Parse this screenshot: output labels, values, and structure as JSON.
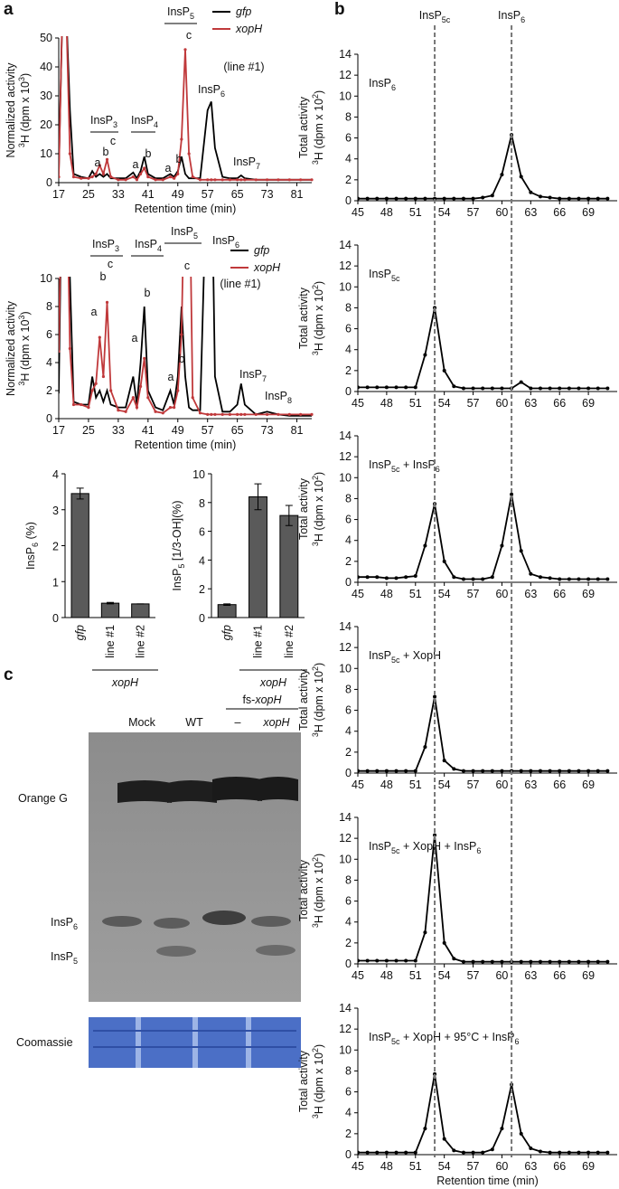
{
  "panel_labels": [
    "a",
    "b",
    "c"
  ],
  "chart_data": [
    {
      "type": "line",
      "xlabel": "Retention time (min)",
      "ylabel_lines": [
        "Normalized activity",
        [
          {
            "sup": "3"
          },
          "H (dpm x 10",
          {
            "sup": "3"
          },
          ")"
        ]
      ],
      "x": [
        17,
        18,
        19,
        20,
        21,
        23,
        25,
        26,
        27,
        28,
        29,
        30,
        31,
        33,
        35,
        37,
        38,
        39,
        40,
        41,
        43,
        45,
        47,
        48,
        49,
        50,
        51,
        52,
        53,
        55,
        57,
        58,
        59,
        61,
        63,
        65,
        66,
        67,
        70,
        73,
        76,
        79,
        82,
        85
      ],
      "xlim": [
        17,
        85
      ],
      "xticks": [
        17,
        25,
        33,
        41,
        49,
        57,
        65,
        73,
        81
      ],
      "ylim": [
        0,
        50
      ],
      "yticks": [
        0,
        10,
        20,
        30,
        40,
        50
      ],
      "series": [
        {
          "name": "gfp",
          "color": "#000000",
          "values": [
            3,
            60,
            60,
            25,
            3,
            2,
            1.5,
            4,
            2,
            3,
            2,
            3,
            1.5,
            1.5,
            1.5,
            3.5,
            1.5,
            4,
            9,
            3,
            1.5,
            1.5,
            3,
            2,
            4,
            9,
            3,
            1.5,
            1.5,
            1.5,
            25,
            28,
            12,
            2,
            1.5,
            1.5,
            2.5,
            1.5,
            1,
            1,
            1,
            1,
            1,
            1
          ]
        },
        {
          "name": "xopH",
          "color": "#c0393b",
          "markers": true,
          "values": [
            2,
            60,
            60,
            10,
            2,
            1.5,
            1.5,
            2,
            3,
            6,
            3,
            8,
            2,
            1,
            1,
            2,
            1,
            3,
            5,
            2,
            1,
            1,
            2,
            1.5,
            3,
            15,
            46,
            10,
            2,
            1,
            1,
            1,
            1,
            1,
            1,
            1,
            1,
            1,
            1,
            1,
            1,
            1,
            1,
            1
          ]
        }
      ],
      "legend_note": "(line #1)",
      "annotations": [
        [
          "InsP",
          {
            "sub": "3"
          }
        ],
        "a",
        "b",
        "c",
        [
          "InsP",
          {
            "sub": "4"
          }
        ],
        "a",
        "b",
        [
          "InsP",
          {
            "sub": "5"
          }
        ],
        "a",
        "b",
        "c",
        [
          "InsP",
          {
            "sub": "6"
          }
        ],
        [
          "InsP",
          {
            "sub": "7"
          }
        ]
      ]
    },
    {
      "type": "line",
      "xlabel": "Retention time (min)",
      "ylabel_lines": [
        "Normalized activity",
        [
          {
            "sup": "3"
          },
          "H (dpm x 10",
          {
            "sup": "3"
          },
          ")"
        ]
      ],
      "x": [
        17,
        18,
        19,
        20,
        21,
        23,
        25,
        26,
        27,
        28,
        29,
        30,
        31,
        33,
        35,
        37,
        38,
        39,
        40,
        41,
        43,
        45,
        47,
        48,
        49,
        50,
        51,
        52,
        53,
        55,
        57,
        58,
        59,
        61,
        63,
        65,
        66,
        67,
        70,
        73,
        76,
        79,
        82,
        85
      ],
      "xlim": [
        17,
        85
      ],
      "xticks": [
        17,
        25,
        33,
        41,
        49,
        57,
        65,
        73,
        81
      ],
      "ylim": [
        0,
        10
      ],
      "yticks": [
        0,
        2,
        4,
        6,
        8,
        10
      ],
      "series": [
        {
          "name": "gfp",
          "color": "#000000",
          "values": [
            1.8,
            20,
            20,
            10,
            1.2,
            1,
            1,
            3,
            1.5,
            2,
            1.2,
            2,
            1,
            0.8,
            0.8,
            3,
            1,
            4,
            8,
            2,
            0.8,
            0.6,
            2,
            1,
            3,
            8,
            3,
            0.8,
            0.6,
            0.6,
            20,
            20,
            3,
            0.5,
            0.5,
            1,
            2.5,
            1,
            0.3,
            0.5,
            0.3,
            0.2,
            0.2,
            0.2
          ]
        },
        {
          "name": "xopH",
          "color": "#c0393b",
          "markers": true,
          "values": [
            4.8,
            20,
            20,
            5,
            1,
            1,
            0.8,
            2,
            2.5,
            5.8,
            3,
            8.3,
            2,
            0.6,
            0.5,
            1.5,
            0.8,
            2.3,
            4.3,
            1.5,
            0.5,
            0.4,
            0.8,
            0.8,
            2,
            6,
            20,
            20,
            1.5,
            0.4,
            0.3,
            0.3,
            0.3,
            0.3,
            0.3,
            0.3,
            0.3,
            0.3,
            0.3,
            0.3,
            0.3,
            0.3,
            0.3,
            0.3
          ]
        }
      ],
      "legend_note": "(line #1)",
      "annotations": [
        [
          "InsP",
          {
            "sub": "3"
          }
        ],
        "a",
        "b",
        "c",
        [
          "InsP",
          {
            "sub": "4"
          }
        ],
        "a",
        "b",
        [
          "InsP",
          {
            "sub": "5"
          }
        ],
        "a",
        "b",
        "c",
        [
          "InsP",
          {
            "sub": "6"
          }
        ],
        [
          "InsP",
          {
            "sub": "7"
          }
        ],
        [
          "InsP",
          {
            "sub": "8"
          }
        ]
      ]
    },
    {
      "type": "bar",
      "ylabel": [
        "InsP",
        {
          "sub": "6"
        },
        " (%)"
      ],
      "categories": [
        "gfp",
        "line #1",
        "line #2"
      ],
      "group_label": "xopH",
      "values": [
        3.45,
        0.4,
        0.38
      ],
      "errors": [
        0.15,
        0.02,
        0
      ],
      "color": "#5a5a5a",
      "ylim": [
        0,
        4
      ],
      "yticks": [
        0,
        1,
        2,
        3,
        4
      ]
    },
    {
      "type": "bar",
      "ylabel": [
        "InsP",
        {
          "sub": "5"
        },
        " [1/3-OH](%)"
      ],
      "categories": [
        "gfp",
        "line #1",
        "line #2"
      ],
      "group_label": "xopH",
      "values": [
        0.9,
        8.4,
        7.1
      ],
      "errors": [
        0.05,
        0.9,
        0.7
      ],
      "color": "#5a5a5a",
      "ylim": [
        0,
        10
      ],
      "yticks": [
        0,
        2,
        4,
        6,
        8,
        10
      ]
    },
    {
      "type": "line",
      "title": [
        "InsP",
        {
          "sub": "6"
        }
      ],
      "ylabel_lines": [
        "Total activity",
        [
          {
            "sup": "3"
          },
          "H (dpm x 10",
          {
            "sup": "2"
          },
          ")"
        ]
      ],
      "x": [
        45,
        46,
        47,
        48,
        49,
        50,
        51,
        52,
        53,
        54,
        55,
        56,
        57,
        58,
        59,
        60,
        61,
        62,
        63,
        64,
        65,
        66,
        67,
        68,
        69,
        70,
        71
      ],
      "xlim": [
        45,
        72
      ],
      "xticks": [
        45,
        48,
        51,
        54,
        57,
        60,
        63,
        66,
        69
      ],
      "ylim": [
        0,
        14
      ],
      "yticks": [
        0,
        2,
        4,
        6,
        8,
        10,
        12,
        14
      ],
      "color": "#000000",
      "markers": true,
      "values": [
        0.2,
        0.2,
        0.2,
        0.2,
        0.2,
        0.2,
        0.2,
        0.2,
        0.2,
        0.2,
        0.2,
        0.2,
        0.2,
        0.3,
        0.5,
        2.5,
        6.3,
        2.3,
        0.8,
        0.4,
        0.3,
        0.2,
        0.2,
        0.2,
        0.2,
        0.2,
        0.2
      ]
    },
    {
      "type": "line",
      "title": [
        "InsP",
        {
          "sub": "5c"
        }
      ],
      "ylabel_lines": [
        "Total activity",
        [
          {
            "sup": "3"
          },
          "H (dpm x 10",
          {
            "sup": "2"
          },
          ")"
        ]
      ],
      "x": [
        45,
        46,
        47,
        48,
        49,
        50,
        51,
        52,
        53,
        54,
        55,
        56,
        57,
        58,
        59,
        60,
        61,
        62,
        63,
        64,
        65,
        66,
        67,
        68,
        69,
        70,
        71
      ],
      "xlim": [
        45,
        72
      ],
      "xticks": [
        45,
        48,
        51,
        54,
        57,
        60,
        63,
        66,
        69
      ],
      "ylim": [
        0,
        14
      ],
      "yticks": [
        0,
        2,
        4,
        6,
        8,
        10,
        12,
        14
      ],
      "color": "#000000",
      "markers": true,
      "values": [
        0.4,
        0.4,
        0.4,
        0.4,
        0.4,
        0.4,
        0.4,
        3.5,
        8,
        2,
        0.5,
        0.3,
        0.3,
        0.3,
        0.3,
        0.3,
        0.3,
        0.9,
        0.3,
        0.3,
        0.3,
        0.3,
        0.3,
        0.3,
        0.3,
        0.3,
        0.3
      ]
    },
    {
      "type": "line",
      "title": [
        "InsP",
        {
          "sub": "5c"
        },
        " + InsP",
        {
          "sub": "6"
        }
      ],
      "ylabel_lines": [
        "Total activity",
        [
          {
            "sup": "3"
          },
          "H (dpm x 10",
          {
            "sup": "2"
          },
          ")"
        ]
      ],
      "x": [
        45,
        46,
        47,
        48,
        49,
        50,
        51,
        52,
        53,
        54,
        55,
        56,
        57,
        58,
        59,
        60,
        61,
        62,
        63,
        64,
        65,
        66,
        67,
        68,
        69,
        70,
        71
      ],
      "xlim": [
        45,
        72
      ],
      "xticks": [
        45,
        48,
        51,
        54,
        57,
        60,
        63,
        66,
        69
      ],
      "ylim": [
        0,
        14
      ],
      "yticks": [
        0,
        2,
        4,
        6,
        8,
        10,
        12,
        14
      ],
      "color": "#000000",
      "markers": true,
      "values": [
        0.5,
        0.5,
        0.5,
        0.4,
        0.4,
        0.5,
        0.6,
        3.5,
        7.5,
        2,
        0.5,
        0.3,
        0.3,
        0.3,
        0.5,
        3.5,
        8.4,
        3,
        0.8,
        0.5,
        0.4,
        0.3,
        0.3,
        0.3,
        0.3,
        0.3,
        0.3
      ]
    },
    {
      "type": "line",
      "title": [
        "InsP",
        {
          "sub": "5c"
        },
        " + XopH"
      ],
      "ylabel_lines": [
        "Total activity",
        [
          {
            "sup": "3"
          },
          "H (dpm x 10",
          {
            "sup": "2"
          },
          ")"
        ]
      ],
      "x": [
        45,
        46,
        47,
        48,
        49,
        50,
        51,
        52,
        53,
        54,
        55,
        56,
        57,
        58,
        59,
        60,
        61,
        62,
        63,
        64,
        65,
        66,
        67,
        68,
        69,
        70,
        71
      ],
      "xlim": [
        45,
        72
      ],
      "xticks": [
        45,
        48,
        51,
        54,
        57,
        60,
        63,
        66,
        69
      ],
      "ylim": [
        0,
        14
      ],
      "yticks": [
        0,
        2,
        4,
        6,
        8,
        10,
        12,
        14
      ],
      "color": "#000000",
      "markers": true,
      "values": [
        0.2,
        0.2,
        0.2,
        0.2,
        0.2,
        0.2,
        0.2,
        2.5,
        7.3,
        1.2,
        0.4,
        0.2,
        0.2,
        0.2,
        0.2,
        0.2,
        0.2,
        0.2,
        0.2,
        0.2,
        0.2,
        0.2,
        0.2,
        0.2,
        0.2,
        0.2,
        0.2
      ]
    },
    {
      "type": "line",
      "title": [
        "InsP",
        {
          "sub": "5c"
        },
        " + XopH + InsP",
        {
          "sub": "6"
        }
      ],
      "ylabel_lines": [
        "Total activity",
        [
          {
            "sup": "3"
          },
          "H (dpm x 10",
          {
            "sup": "2"
          },
          ")"
        ]
      ],
      "x": [
        45,
        46,
        47,
        48,
        49,
        50,
        51,
        52,
        53,
        54,
        55,
        56,
        57,
        58,
        59,
        60,
        61,
        62,
        63,
        64,
        65,
        66,
        67,
        68,
        69,
        70,
        71
      ],
      "xlim": [
        45,
        72
      ],
      "xticks": [
        45,
        48,
        51,
        54,
        57,
        60,
        63,
        66,
        69
      ],
      "ylim": [
        0,
        14
      ],
      "yticks": [
        0,
        2,
        4,
        6,
        8,
        10,
        12,
        14
      ],
      "color": "#000000",
      "markers": true,
      "values": [
        0.3,
        0.3,
        0.3,
        0.3,
        0.3,
        0.3,
        0.3,
        3,
        12.3,
        2,
        0.5,
        0.2,
        0.2,
        0.2,
        0.2,
        0.2,
        0.2,
        0.2,
        0.2,
        0.2,
        0.2,
        0.2,
        0.2,
        0.2,
        0.2,
        0.2,
        0.2
      ]
    },
    {
      "type": "line",
      "title": [
        "InsP",
        {
          "sub": "5c"
        },
        " + XopH + 95°C + InsP",
        {
          "sub": "6"
        }
      ],
      "ylabel_lines": [
        "Total activity",
        [
          {
            "sup": "3"
          },
          "H (dpm x 10",
          {
            "sup": "2"
          },
          ")"
        ]
      ],
      "xlabel": "Retention time (min)",
      "x": [
        45,
        46,
        47,
        48,
        49,
        50,
        51,
        52,
        53,
        54,
        55,
        56,
        57,
        58,
        59,
        60,
        61,
        62,
        63,
        64,
        65,
        66,
        67,
        68,
        69,
        70,
        71
      ],
      "xlim": [
        45,
        72
      ],
      "xticks": [
        45,
        48,
        51,
        54,
        57,
        60,
        63,
        66,
        69
      ],
      "ylim": [
        0,
        14
      ],
      "yticks": [
        0,
        2,
        4,
        6,
        8,
        10,
        12,
        14
      ],
      "color": "#000000",
      "markers": true,
      "values": [
        0.2,
        0.2,
        0.2,
        0.2,
        0.2,
        0.2,
        0.2,
        2.5,
        7.7,
        1.5,
        0.4,
        0.2,
        0.2,
        0.2,
        0.5,
        2.5,
        6.7,
        2,
        0.6,
        0.3,
        0.2,
        0.2,
        0.2,
        0.2,
        0.2,
        0.2,
        0.2
      ]
    }
  ],
  "markers_b": [
    {
      "value": 53,
      "label": [
        "InsP",
        {
          "sub": "5c"
        }
      ]
    },
    {
      "value": 61,
      "label": [
        "InsP",
        {
          "sub": "6"
        }
      ]
    }
  ],
  "gel": {
    "header": [
      "fs-",
      {
        "i": "xopH"
      }
    ],
    "lanes": [
      "Mock",
      "WT",
      "–",
      {
        "i": "xopH"
      }
    ],
    "bands": [
      "Orange G",
      [
        "InsP",
        {
          "sub": "6"
        }
      ],
      [
        "InsP",
        {
          "sub": "5"
        }
      ]
    ],
    "stain": "Coomassie"
  }
}
